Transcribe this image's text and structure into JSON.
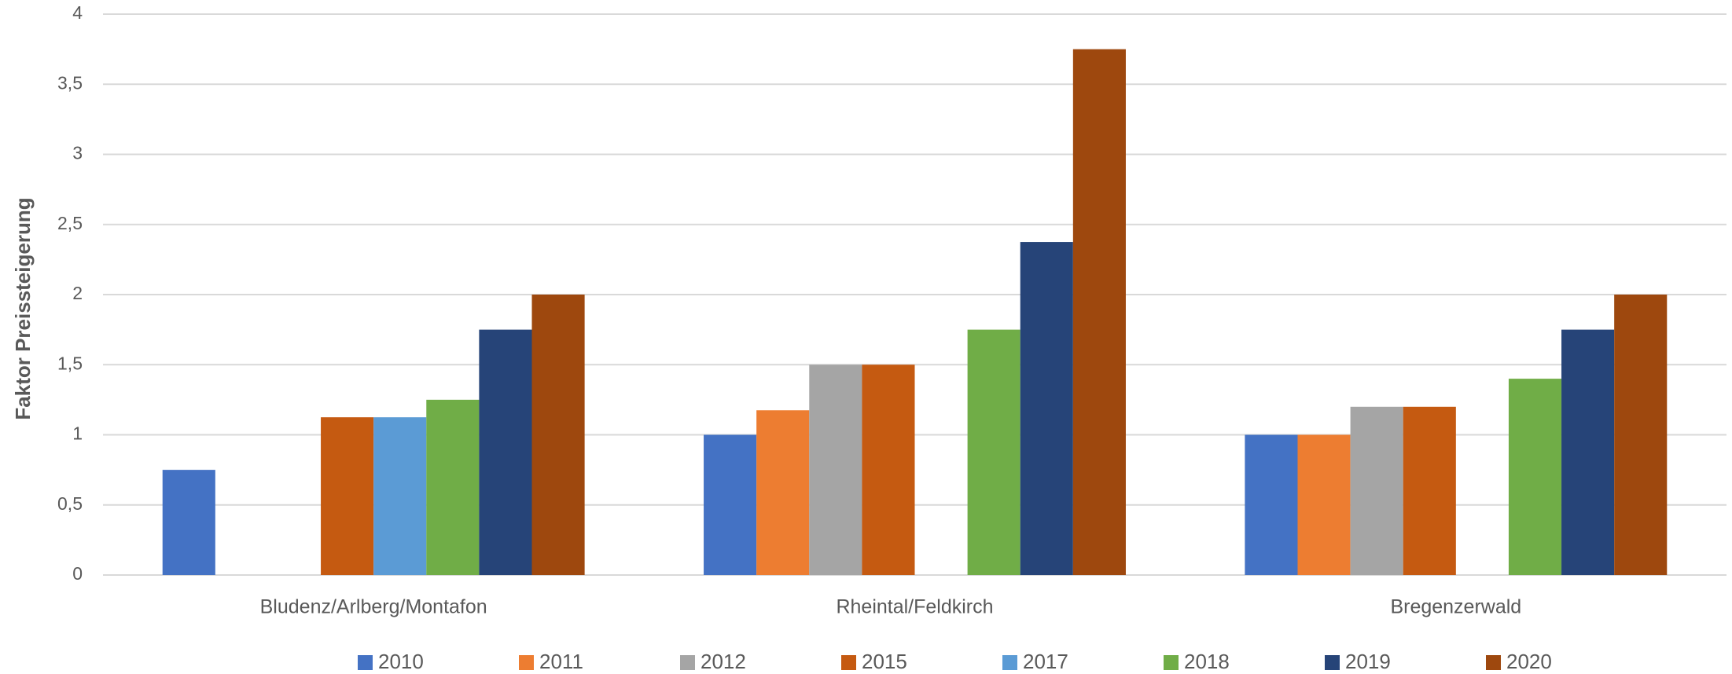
{
  "chart_data": {
    "type": "bar",
    "y_label": "Faktor Preissteigerung",
    "categories": [
      "Bludenz/Arlberg/Montafon",
      "Rheintal/Feldkirch",
      "Bregenzerwald"
    ],
    "series": [
      {
        "name": "2010",
        "color": "#4472c4",
        "values": [
          0.75,
          1,
          1
        ]
      },
      {
        "name": "2011",
        "color": "#ed7d31",
        "values": [
          null,
          1.175,
          1
        ]
      },
      {
        "name": "2012",
        "color": "#a5a5a5",
        "values": [
          null,
          1.5,
          1.2
        ]
      },
      {
        "name": "2015",
        "color": "#c55a11",
        "values": [
          1.125,
          1.5,
          1.2
        ]
      },
      {
        "name": "2017",
        "color": "#5b9bd5",
        "values": [
          1.125,
          null,
          null
        ]
      },
      {
        "name": "2018",
        "color": "#70ad47",
        "values": [
          1.25,
          1.75,
          1.4
        ]
      },
      {
        "name": "2019",
        "color": "#264478",
        "values": [
          1.75,
          2.375,
          1.75
        ]
      },
      {
        "name": "2020",
        "color": "#9e480e",
        "values": [
          2,
          3.75,
          2
        ]
      }
    ],
    "ylim": [
      0,
      4
    ],
    "yticks": [
      0,
      {
        "value": 0.5,
        "label": "0,5"
      },
      1,
      {
        "value": 1.5,
        "label": "1,5"
      },
      2,
      {
        "value": 2.5,
        "label": "2,5"
      },
      3,
      {
        "value": 3.5,
        "label": "3,5"
      },
      4
    ],
    "grid": true,
    "legend": "bottom"
  }
}
